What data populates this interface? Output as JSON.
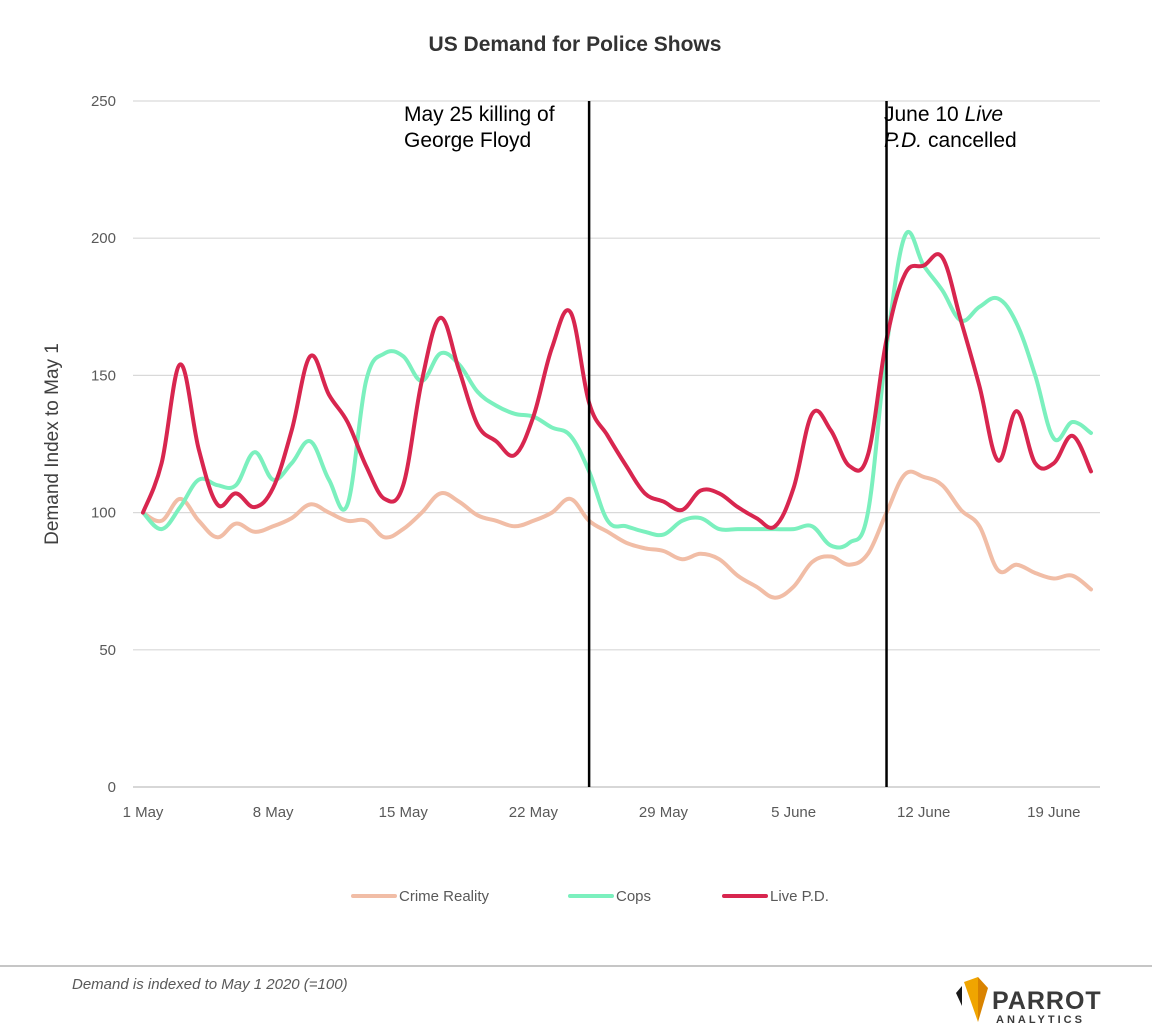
{
  "chart_data": {
    "type": "line",
    "title": "US Demand for Police Shows",
    "xlabel": "",
    "ylabel": "Demand Index to May 1",
    "ylim": [
      0,
      250
    ],
    "yticks": [
      0,
      50,
      100,
      150,
      200,
      250
    ],
    "xlim": [
      1,
      52
    ],
    "xticks": [
      {
        "label": "1 May",
        "day": 1
      },
      {
        "label": "8 May",
        "day": 8
      },
      {
        "label": "15 May",
        "day": 15
      },
      {
        "label": "22 May",
        "day": 22
      },
      {
        "label": "29 May",
        "day": 29
      },
      {
        "label": "5 June",
        "day": 36
      },
      {
        "label": "12 June",
        "day": 43
      },
      {
        "label": "19 June",
        "day": 50
      }
    ],
    "grid": true,
    "legend": "bottom-center",
    "series": [
      {
        "name": "Crime Reality",
        "color": "#F1BDA6",
        "points": [
          [
            1,
            100
          ],
          [
            2,
            97
          ],
          [
            3,
            105
          ],
          [
            4,
            97
          ],
          [
            5,
            91
          ],
          [
            6,
            96
          ],
          [
            7,
            93
          ],
          [
            8,
            95
          ],
          [
            9,
            98
          ],
          [
            10,
            103
          ],
          [
            11,
            100
          ],
          [
            12,
            97
          ],
          [
            13,
            97
          ],
          [
            14,
            91
          ],
          [
            15,
            94
          ],
          [
            16,
            100
          ],
          [
            17,
            107
          ],
          [
            18,
            104
          ],
          [
            19,
            99
          ],
          [
            20,
            97
          ],
          [
            21,
            95
          ],
          [
            22,
            97
          ],
          [
            23,
            100
          ],
          [
            24,
            105
          ],
          [
            25,
            97
          ],
          [
            26,
            93
          ],
          [
            27,
            89
          ],
          [
            28,
            87
          ],
          [
            29,
            86
          ],
          [
            30,
            83
          ],
          [
            31,
            85
          ],
          [
            32,
            83
          ],
          [
            33,
            77
          ],
          [
            34,
            73
          ],
          [
            35,
            69
          ],
          [
            36,
            73
          ],
          [
            37,
            82
          ],
          [
            38,
            84
          ],
          [
            39,
            81
          ],
          [
            40,
            85
          ],
          [
            41,
            100
          ],
          [
            42,
            114
          ],
          [
            43,
            113
          ],
          [
            44,
            110
          ],
          [
            45,
            101
          ],
          [
            46,
            95
          ],
          [
            47,
            79
          ],
          [
            48,
            81
          ],
          [
            49,
            78
          ],
          [
            50,
            76
          ],
          [
            51,
            77
          ],
          [
            52,
            72
          ]
        ]
      },
      {
        "name": "Cops",
        "color": "#7BF0BE",
        "points": [
          [
            1,
            100
          ],
          [
            2,
            94
          ],
          [
            3,
            102
          ],
          [
            4,
            112
          ],
          [
            5,
            110
          ],
          [
            6,
            110
          ],
          [
            7,
            122
          ],
          [
            8,
            112
          ],
          [
            9,
            118
          ],
          [
            10,
            126
          ],
          [
            11,
            112
          ],
          [
            12,
            103
          ],
          [
            13,
            148
          ],
          [
            14,
            158
          ],
          [
            15,
            157
          ],
          [
            16,
            148
          ],
          [
            17,
            158
          ],
          [
            18,
            154
          ],
          [
            19,
            144
          ],
          [
            20,
            139
          ],
          [
            21,
            136
          ],
          [
            22,
            135
          ],
          [
            23,
            131
          ],
          [
            24,
            128
          ],
          [
            25,
            115
          ],
          [
            26,
            97
          ],
          [
            27,
            95
          ],
          [
            28,
            93
          ],
          [
            29,
            92
          ],
          [
            30,
            97
          ],
          [
            31,
            98
          ],
          [
            32,
            94
          ],
          [
            33,
            94
          ],
          [
            34,
            94
          ],
          [
            35,
            94
          ],
          [
            36,
            94
          ],
          [
            37,
            95
          ],
          [
            38,
            88
          ],
          [
            39,
            89
          ],
          [
            40,
            100
          ],
          [
            41,
            160
          ],
          [
            42,
            201
          ],
          [
            43,
            190
          ],
          [
            44,
            181
          ],
          [
            45,
            170
          ],
          [
            46,
            175
          ],
          [
            47,
            178
          ],
          [
            48,
            169
          ],
          [
            49,
            150
          ],
          [
            50,
            127
          ],
          [
            51,
            133
          ],
          [
            52,
            129
          ]
        ]
      },
      {
        "name": "Live P.D.",
        "color": "#D8264F",
        "points": [
          [
            1,
            100
          ],
          [
            2,
            118
          ],
          [
            3,
            154
          ],
          [
            4,
            123
          ],
          [
            5,
            103
          ],
          [
            6,
            107
          ],
          [
            7,
            102
          ],
          [
            8,
            109
          ],
          [
            9,
            130
          ],
          [
            10,
            157
          ],
          [
            11,
            143
          ],
          [
            12,
            133
          ],
          [
            13,
            117
          ],
          [
            14,
            105
          ],
          [
            15,
            110
          ],
          [
            16,
            148
          ],
          [
            17,
            171
          ],
          [
            18,
            152
          ],
          [
            19,
            132
          ],
          [
            20,
            126
          ],
          [
            21,
            121
          ],
          [
            22,
            135
          ],
          [
            23,
            160
          ],
          [
            24,
            173
          ],
          [
            25,
            140
          ],
          [
            26,
            128
          ],
          [
            27,
            117
          ],
          [
            28,
            107
          ],
          [
            29,
            104
          ],
          [
            30,
            101
          ],
          [
            31,
            108
          ],
          [
            32,
            107
          ],
          [
            33,
            102
          ],
          [
            34,
            98
          ],
          [
            35,
            95
          ],
          [
            36,
            109
          ],
          [
            37,
            136
          ],
          [
            38,
            130
          ],
          [
            39,
            117
          ],
          [
            40,
            121
          ],
          [
            41,
            163
          ],
          [
            42,
            187
          ],
          [
            43,
            190
          ],
          [
            44,
            193
          ],
          [
            45,
            170
          ],
          [
            46,
            146
          ],
          [
            47,
            119
          ],
          [
            48,
            137
          ],
          [
            49,
            118
          ],
          [
            50,
            118
          ],
          [
            51,
            128
          ],
          [
            52,
            115
          ]
        ]
      }
    ],
    "annotations": [
      {
        "day": 25,
        "lines": [
          "May 25 killing of",
          "George Floyd"
        ]
      },
      {
        "day": 41,
        "lines": [
          "June 10 ",
          "Live",
          "P.D.",
          " cancelled"
        ]
      }
    ]
  },
  "footer": {
    "note": "Demand is indexed to May 1 2020 (=100)",
    "logo_word": "PARROT",
    "logo_sub": "ANALYTICS"
  }
}
